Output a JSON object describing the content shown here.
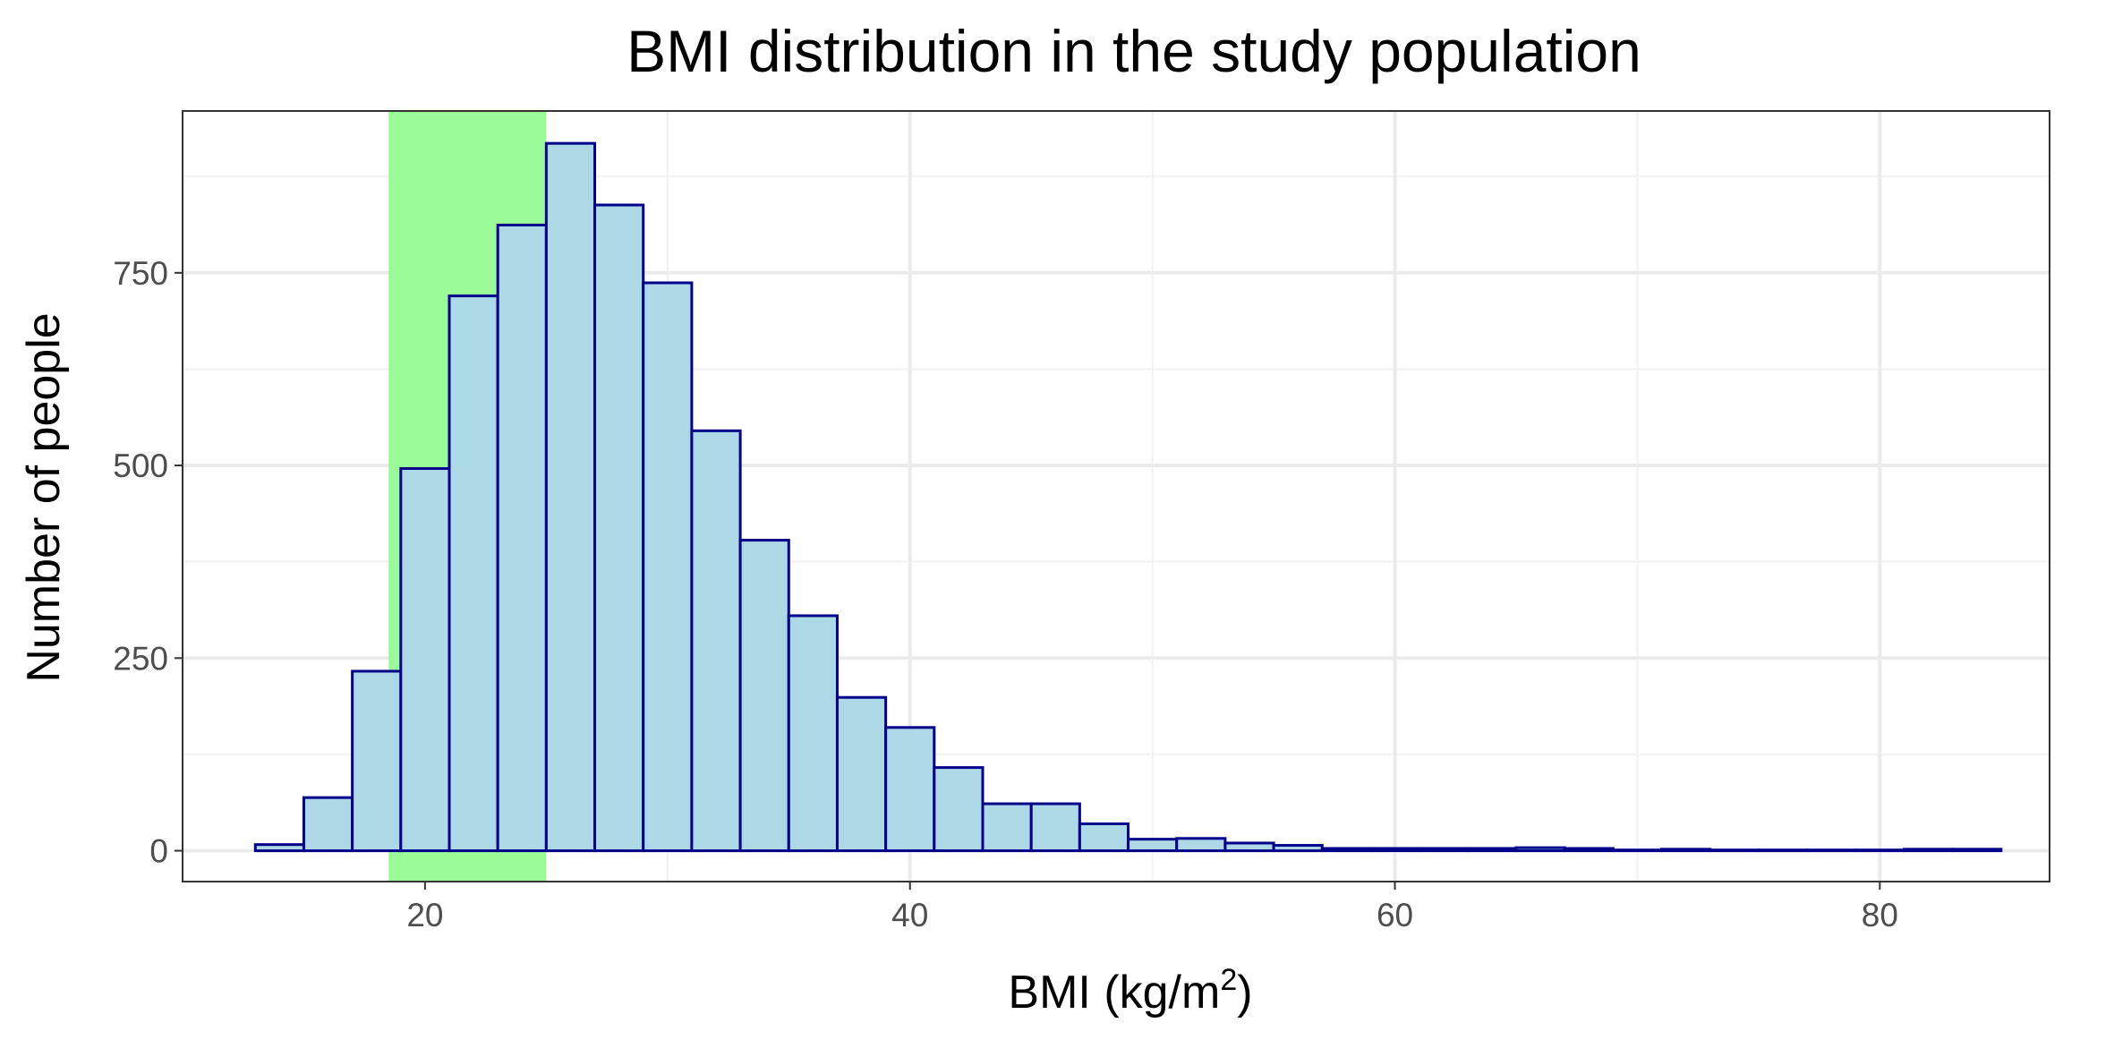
{
  "chart_data": {
    "type": "bar",
    "title": "BMI distribution in the study population",
    "xlabel": "BMI (kg/m",
    "xlabel_superscript": "2",
    "xlabel_close": ")",
    "ylabel": "Number of people",
    "xlim": [
      10,
      87
    ],
    "ylim": [
      -40,
      960
    ],
    "x_ticks": [
      20,
      40,
      60,
      80
    ],
    "x_tick_labels": [
      "20",
      "40",
      "60",
      "80"
    ],
    "y_ticks": [
      0,
      250,
      500,
      750
    ],
    "y_tick_labels": [
      "0",
      "250",
      "500",
      "750"
    ],
    "grid": true,
    "highlight_band": {
      "x_start": 18.5,
      "x_end": 25,
      "color": "#98fb98"
    },
    "bin_width": 2,
    "bins": [
      {
        "x0": 13,
        "x1": 15,
        "count": 8
      },
      {
        "x0": 15,
        "x1": 17,
        "count": 69
      },
      {
        "x0": 17,
        "x1": 19,
        "count": 233
      },
      {
        "x0": 19,
        "x1": 21,
        "count": 496
      },
      {
        "x0": 21,
        "x1": 23,
        "count": 720
      },
      {
        "x0": 23,
        "x1": 25,
        "count": 812
      },
      {
        "x0": 25,
        "x1": 27,
        "count": 918
      },
      {
        "x0": 27,
        "x1": 29,
        "count": 838
      },
      {
        "x0": 29,
        "x1": 31,
        "count": 737
      },
      {
        "x0": 31,
        "x1": 33,
        "count": 545
      },
      {
        "x0": 33,
        "x1": 35,
        "count": 403
      },
      {
        "x0": 35,
        "x1": 37,
        "count": 305
      },
      {
        "x0": 37,
        "x1": 39,
        "count": 199
      },
      {
        "x0": 39,
        "x1": 41,
        "count": 160
      },
      {
        "x0": 41,
        "x1": 43,
        "count": 108
      },
      {
        "x0": 43,
        "x1": 45,
        "count": 61
      },
      {
        "x0": 45,
        "x1": 47,
        "count": 61
      },
      {
        "x0": 47,
        "x1": 49,
        "count": 35
      },
      {
        "x0": 49,
        "x1": 51,
        "count": 15
      },
      {
        "x0": 51,
        "x1": 53,
        "count": 16
      },
      {
        "x0": 53,
        "x1": 55,
        "count": 10
      },
      {
        "x0": 55,
        "x1": 57,
        "count": 7
      },
      {
        "x0": 57,
        "x1": 59,
        "count": 3
      },
      {
        "x0": 59,
        "x1": 61,
        "count": 3
      },
      {
        "x0": 61,
        "x1": 63,
        "count": 3
      },
      {
        "x0": 63,
        "x1": 65,
        "count": 3
      },
      {
        "x0": 65,
        "x1": 67,
        "count": 4
      },
      {
        "x0": 67,
        "x1": 69,
        "count": 3
      },
      {
        "x0": 69,
        "x1": 71,
        "count": 1
      },
      {
        "x0": 71,
        "x1": 73,
        "count": 2
      },
      {
        "x0": 73,
        "x1": 75,
        "count": 1
      },
      {
        "x0": 75,
        "x1": 77,
        "count": 1
      },
      {
        "x0": 77,
        "x1": 79,
        "count": 1
      },
      {
        "x0": 79,
        "x1": 81,
        "count": 1
      },
      {
        "x0": 81,
        "x1": 83,
        "count": 2
      },
      {
        "x0": 83,
        "x1": 85,
        "count": 2
      }
    ],
    "colors": {
      "bar_fill": "#add8e6",
      "bar_stroke": "#00008b",
      "grid_major": "#ebebeb",
      "grid_minor": "#f2f2f2",
      "panel_border": "#333333"
    }
  }
}
